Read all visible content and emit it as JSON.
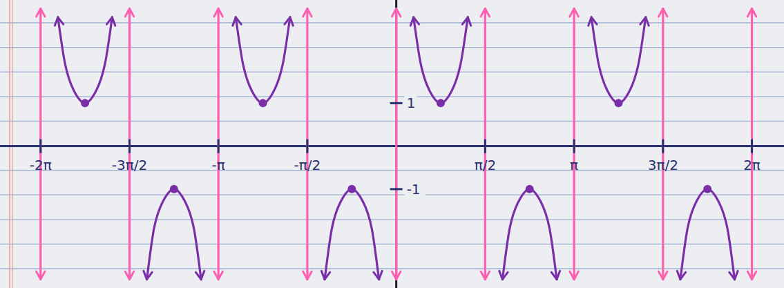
{
  "chart_data": {
    "type": "line",
    "xlim": [
      -7.0,
      6.85
    ],
    "ylim": [
      -3.3,
      3.4
    ],
    "xticks": [
      {
        "value": -6.283,
        "label": "-2π"
      },
      {
        "value": -4.712,
        "label": "-3π/2"
      },
      {
        "value": -3.142,
        "label": "-π"
      },
      {
        "value": -1.571,
        "label": "-π/2"
      },
      {
        "value": 1.571,
        "label": "π/2"
      },
      {
        "value": 3.142,
        "label": "π"
      },
      {
        "value": 4.712,
        "label": "3π/2"
      },
      {
        "value": 6.283,
        "label": "2π"
      }
    ],
    "yticks": [
      1,
      -1
    ],
    "grid": false,
    "series": [
      {
        "type": "line",
        "color": "#ff5fb0",
        "line_style": "solid",
        "marker": "none",
        "x": [
          -6.283,
          -6.283,
          null,
          -4.712,
          -4.712,
          null,
          -3.142,
          -3.142,
          null,
          -1.571,
          -1.571,
          null,
          0,
          0,
          null,
          1.571,
          1.571,
          null,
          3.142,
          3.142,
          null,
          4.712,
          4.712,
          null,
          6.283,
          6.283
        ],
        "values": [
          3.2,
          -3.1,
          null,
          3.2,
          -3.1,
          null,
          3.2,
          -3.1,
          null,
          3.2,
          -3.1,
          null,
          3.2,
          -3.1,
          null,
          3.2,
          -3.1,
          null,
          3.2,
          -3.1,
          null,
          3.2,
          -3.1,
          null,
          3.2,
          -3.1
        ]
      },
      {
        "type": "line",
        "color": "#7a2fa8",
        "line_style": "solid",
        "marker": "none",
        "x": [
          -5.978,
          -5.848,
          -5.698,
          -5.498,
          -5.298,
          -5.148,
          -5.018,
          null,
          -4.407,
          -4.277,
          -4.127,
          -3.927,
          -3.727,
          -3.577,
          -3.447,
          null,
          -2.836,
          -2.706,
          -2.556,
          -2.356,
          -2.156,
          -2.006,
          -1.876,
          null,
          -1.265,
          -1.135,
          -0.985,
          -0.785,
          -0.585,
          -0.435,
          -0.305,
          null,
          0.305,
          0.435,
          0.585,
          0.785,
          0.985,
          1.135,
          1.265,
          null,
          1.876,
          2.006,
          2.156,
          2.356,
          2.556,
          2.706,
          2.836,
          null,
          3.447,
          3.577,
          3.727,
          3.927,
          4.127,
          4.277,
          4.407,
          null,
          5.018,
          5.148,
          5.298,
          5.498,
          5.698,
          5.848,
          5.978
        ],
        "values": [
          3.0,
          1.9,
          1.3,
          1,
          1.3,
          1.9,
          3.0,
          null,
          -3.1,
          -1.9,
          -1.3,
          -1,
          -1.3,
          -1.9,
          -3.1,
          null,
          3.0,
          1.9,
          1.3,
          1,
          1.3,
          1.9,
          3.0,
          null,
          -3.1,
          -1.9,
          -1.3,
          -1,
          -1.3,
          -1.9,
          -3.1,
          null,
          3.0,
          1.9,
          1.3,
          1,
          1.3,
          1.9,
          3.0,
          null,
          -3.1,
          -1.9,
          -1.3,
          -1,
          -1.3,
          -1.9,
          -3.1,
          null,
          3.0,
          1.9,
          1.3,
          1,
          1.3,
          1.9,
          3.0,
          null,
          -3.1,
          -1.9,
          -1.3,
          -1,
          -1.3,
          -1.9,
          -3.1
        ]
      },
      {
        "type": "scatter",
        "color": "#7a2fa8",
        "marker": "dot",
        "x": [
          -5.498,
          -3.927,
          -2.356,
          -0.785,
          0.785,
          2.356,
          3.927,
          5.498
        ],
        "values": [
          1,
          -1,
          1,
          -1,
          1,
          -1,
          1,
          -1
        ]
      }
    ]
  }
}
